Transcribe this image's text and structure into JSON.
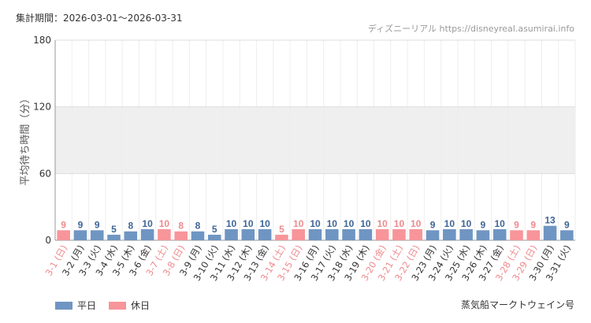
{
  "header": {
    "period": "集計期間：2026-03-01～2026-03-31",
    "credit": "ディズニーリアル https://disneyreal.asumirai.info"
  },
  "footer": {
    "attraction": "蒸気船マークトウェイン号"
  },
  "colors": {
    "weekday": "#6f95c2",
    "holiday": "#f7959a",
    "weekday_text": "#3f6596",
    "holiday_text": "#ee8a8e",
    "band": "#efefef",
    "grid": "#dddddd"
  },
  "chart_data": {
    "type": "bar",
    "title": "",
    "xlabel": "",
    "ylabel": "平均待ち時間（分）",
    "ylim": [
      0,
      180
    ],
    "yticks": [
      0,
      60,
      120,
      180
    ],
    "shaded_band": [
      60,
      120
    ],
    "grid": true,
    "legend_position": "bottom-left",
    "legend": [
      {
        "name": "平日",
        "key": "weekday"
      },
      {
        "name": "休日",
        "key": "holiday"
      }
    ],
    "categories": [
      "3-1 (日)",
      "3-2 (月)",
      "3-3 (火)",
      "3-4 (水)",
      "3-5 (木)",
      "3-6 (金)",
      "3-7 (土)",
      "3-8 (日)",
      "3-9 (月)",
      "3-10 (火)",
      "3-11 (水)",
      "3-12 (木)",
      "3-13 (金)",
      "3-14 (土)",
      "3-15 (日)",
      "3-16 (月)",
      "3-17 (火)",
      "3-18 (水)",
      "3-19 (木)",
      "3-20 (金)",
      "3-21 (土)",
      "3-22 (日)",
      "3-23 (月)",
      "3-24 (火)",
      "3-25 (水)",
      "3-26 (木)",
      "3-27 (金)",
      "3-28 (土)",
      "3-29 (日)",
      "3-30 (月)",
      "3-31 (火)"
    ],
    "values": [
      9,
      9,
      9,
      5,
      8,
      10,
      10,
      8,
      8,
      5,
      10,
      10,
      10,
      5,
      10,
      10,
      10,
      10,
      10,
      10,
      10,
      10,
      9,
      10,
      10,
      9,
      10,
      9,
      9,
      13,
      9
    ],
    "day_type": [
      "holiday",
      "weekday",
      "weekday",
      "weekday",
      "weekday",
      "weekday",
      "holiday",
      "holiday",
      "weekday",
      "weekday",
      "weekday",
      "weekday",
      "weekday",
      "holiday",
      "holiday",
      "weekday",
      "weekday",
      "weekday",
      "weekday",
      "holiday",
      "holiday",
      "holiday",
      "weekday",
      "weekday",
      "weekday",
      "weekday",
      "weekday",
      "holiday",
      "holiday",
      "weekday",
      "weekday"
    ]
  }
}
